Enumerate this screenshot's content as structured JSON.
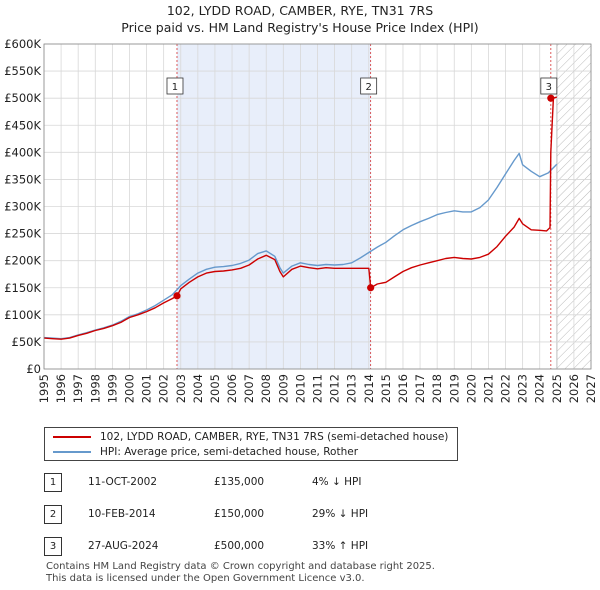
{
  "title_line1": "102, LYDD ROAD, CAMBER, RYE, TN31 7RS",
  "title_line2": "Price paid vs. HM Land Registry's House Price Index (HPI)",
  "colors": {
    "property": "#cc0000",
    "hpi": "#6699cc",
    "shade": "#e8eefa",
    "marker_line": "#cc0000",
    "grid": "#d8d8d8"
  },
  "chart_data": {
    "type": "line",
    "xlim": [
      1995,
      2027
    ],
    "ylim": [
      0,
      600000
    ],
    "x_ticks": [
      "1995",
      "1996",
      "1997",
      "1998",
      "1999",
      "2000",
      "2001",
      "2002",
      "2003",
      "2004",
      "2005",
      "2006",
      "2007",
      "2008",
      "2009",
      "2010",
      "2011",
      "2012",
      "2013",
      "2014",
      "2015",
      "2016",
      "2017",
      "2018",
      "2019",
      "2020",
      "2021",
      "2022",
      "2023",
      "2024",
      "2025",
      "2026",
      "2027"
    ],
    "y_ticks": [
      {
        "value": 0,
        "label": "£0"
      },
      {
        "value": 50000,
        "label": "£50K"
      },
      {
        "value": 100000,
        "label": "£100K"
      },
      {
        "value": 150000,
        "label": "£150K"
      },
      {
        "value": 200000,
        "label": "£200K"
      },
      {
        "value": 250000,
        "label": "£250K"
      },
      {
        "value": 300000,
        "label": "£300K"
      },
      {
        "value": 350000,
        "label": "£350K"
      },
      {
        "value": 400000,
        "label": "£400K"
      },
      {
        "value": 450000,
        "label": "£450K"
      },
      {
        "value": 500000,
        "label": "£500K"
      },
      {
        "value": 550000,
        "label": "£550K"
      },
      {
        "value": 600000,
        "label": "£600K"
      }
    ],
    "shaded_period": [
      2002.78,
      2014.11
    ],
    "future_hatch_from": 2025.0,
    "series": [
      {
        "name": "102, LYDD ROAD, CAMBER, RYE, TN31 7RS (semi-detached house)",
        "x": [
          1995.0,
          1995.5,
          1996.0,
          1996.5,
          1997.0,
          1997.5,
          1998.0,
          1998.5,
          1999.0,
          1999.5,
          2000.0,
          2000.5,
          2001.0,
          2001.5,
          2002.0,
          2002.5,
          2002.78,
          2003.0,
          2003.5,
          2004.0,
          2004.5,
          2005.0,
          2005.5,
          2006.0,
          2006.5,
          2007.0,
          2007.5,
          2008.0,
          2008.5,
          2008.8,
          2009.0,
          2009.5,
          2010.0,
          2010.5,
          2011.0,
          2011.5,
          2012.0,
          2012.5,
          2013.0,
          2013.5,
          2014.0,
          2014.11,
          2014.5,
          2015.0,
          2015.5,
          2016.0,
          2016.5,
          2017.0,
          2017.5,
          2018.0,
          2018.5,
          2019.0,
          2019.5,
          2020.0,
          2020.5,
          2021.0,
          2021.5,
          2022.0,
          2022.5,
          2022.8,
          2023.0,
          2023.5,
          2024.0,
          2024.4,
          2024.6,
          2024.65,
          2024.8,
          2025.0
        ],
        "y": [
          57000,
          56000,
          55000,
          57000,
          62000,
          66000,
          71000,
          75000,
          80000,
          86000,
          95000,
          100000,
          106000,
          113000,
          122000,
          130000,
          135000,
          148000,
          160000,
          170000,
          177000,
          180000,
          181000,
          183000,
          186000,
          192000,
          203000,
          210000,
          202000,
          180000,
          170000,
          184000,
          190000,
          187000,
          185000,
          187000,
          186000,
          186000,
          186000,
          186000,
          186000,
          150000,
          157000,
          160000,
          170000,
          180000,
          187000,
          192000,
          196000,
          200000,
          204000,
          206000,
          204000,
          203000,
          206000,
          212000,
          226000,
          245000,
          262000,
          278000,
          268000,
          257000,
          256000,
          255000,
          261000,
          400000,
          500000,
          502000
        ]
      },
      {
        "name": "HPI: Average price, semi-detached house, Rother",
        "x": [
          1995.0,
          1995.5,
          1996.0,
          1996.5,
          1997.0,
          1997.5,
          1998.0,
          1998.5,
          1999.0,
          1999.5,
          2000.0,
          2000.5,
          2001.0,
          2001.5,
          2002.0,
          2002.5,
          2003.0,
          2003.5,
          2004.0,
          2004.5,
          2005.0,
          2005.5,
          2006.0,
          2006.5,
          2007.0,
          2007.5,
          2008.0,
          2008.5,
          2008.8,
          2009.0,
          2009.5,
          2010.0,
          2010.5,
          2011.0,
          2011.5,
          2012.0,
          2012.5,
          2013.0,
          2013.5,
          2014.0,
          2014.5,
          2015.0,
          2015.5,
          2016.0,
          2016.5,
          2017.0,
          2017.5,
          2018.0,
          2018.5,
          2019.0,
          2019.5,
          2020.0,
          2020.5,
          2021.0,
          2021.5,
          2022.0,
          2022.5,
          2022.8,
          2023.0,
          2023.5,
          2024.0,
          2024.5,
          2025.0
        ],
        "y": [
          58000,
          57000,
          56000,
          58000,
          63000,
          67000,
          72000,
          76000,
          81000,
          88000,
          97000,
          102000,
          109000,
          117000,
          127000,
          137000,
          154000,
          166000,
          177000,
          184000,
          188000,
          189000,
          191000,
          195000,
          201000,
          213000,
          218000,
          208000,
          187000,
          177000,
          190000,
          196000,
          193000,
          191000,
          193000,
          192000,
          193000,
          196000,
          205000,
          215000,
          225000,
          234000,
          246000,
          257000,
          265000,
          272000,
          278000,
          285000,
          289000,
          292000,
          290000,
          290000,
          298000,
          312000,
          335000,
          360000,
          385000,
          398000,
          377000,
          365000,
          355000,
          362000,
          378000
        ]
      }
    ],
    "sales": [
      {
        "num": "1",
        "x": 2002.78,
        "y": 135000,
        "date": "11-OCT-2002",
        "price": "£135,000",
        "hpi": "4% ↓ HPI"
      },
      {
        "num": "2",
        "x": 2014.11,
        "y": 150000,
        "date": "10-FEB-2014",
        "price": "£150,000",
        "hpi": "29% ↓ HPI"
      },
      {
        "num": "3",
        "x": 2024.65,
        "y": 500000,
        "date": "27-AUG-2024",
        "price": "£500,000",
        "hpi": "33% ↑ HPI"
      }
    ]
  },
  "footer_line1": "Contains HM Land Registry data © Crown copyright and database right 2025.",
  "footer_line2": "This data is licensed under the Open Government Licence v3.0."
}
